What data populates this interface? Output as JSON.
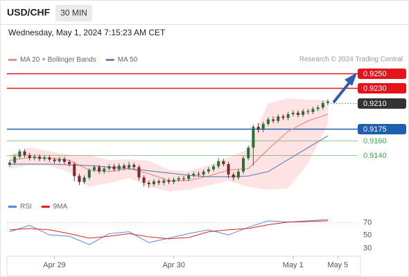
{
  "header": {
    "symbol": "USD/CHF",
    "interval": "30 MIN",
    "timestamp": "Wednesday, May 1, 2024 7:15:23 AM CET",
    "credit": "Research © 2024 Trading Central"
  },
  "chart_data": [
    {
      "type": "candlestick",
      "open": [
        0.9127,
        0.913,
        0.9138,
        0.9145,
        0.914,
        0.9136,
        0.9138,
        0.9135,
        0.9137,
        0.9134,
        0.9132,
        0.9135,
        0.9131,
        0.9128,
        0.9112,
        0.9104,
        0.911,
        0.912,
        0.9124,
        0.9118,
        0.9122,
        0.9125,
        0.9121,
        0.9126,
        0.9123,
        0.9127,
        0.9124,
        0.911,
        0.9103,
        0.9101,
        0.9105,
        0.9103,
        0.9106,
        0.9104,
        0.9107,
        0.9109,
        0.9108,
        0.9113,
        0.9115,
        0.9114,
        0.9118,
        0.9121,
        0.9125,
        0.9132,
        0.9128,
        0.9114,
        0.911,
        0.9118,
        0.9136,
        0.915,
        0.9178,
        0.9174,
        0.9182,
        0.9188,
        0.9186,
        0.9192,
        0.919,
        0.9195,
        0.9197,
        0.9194,
        0.9199,
        0.9198,
        0.9202,
        0.9204,
        0.921
      ],
      "high": [
        0.9133,
        0.9141,
        0.9148,
        0.9148,
        0.9143,
        0.9141,
        0.9141,
        0.914,
        0.914,
        0.9137,
        0.9138,
        0.9138,
        0.9134,
        0.9131,
        0.9115,
        0.9113,
        0.9123,
        0.9127,
        0.9127,
        0.9125,
        0.9128,
        0.9128,
        0.9129,
        0.9129,
        0.9131,
        0.913,
        0.9127,
        0.9113,
        0.9106,
        0.9108,
        0.9108,
        0.9109,
        0.9109,
        0.911,
        0.9112,
        0.9112,
        0.9116,
        0.9118,
        0.9118,
        0.9121,
        0.9124,
        0.9128,
        0.9136,
        0.9135,
        0.9131,
        0.9117,
        0.9121,
        0.9139,
        0.9153,
        0.9181,
        0.9183,
        0.9185,
        0.9191,
        0.9192,
        0.9195,
        0.9195,
        0.9198,
        0.92,
        0.92,
        0.9202,
        0.9202,
        0.9205,
        0.9207,
        0.9213,
        0.9215
      ],
      "low": [
        0.9124,
        0.9127,
        0.9135,
        0.9137,
        0.9133,
        0.9133,
        0.9132,
        0.9132,
        0.9131,
        0.9129,
        0.9129,
        0.9128,
        0.9125,
        0.9105,
        0.91,
        0.9101,
        0.9107,
        0.9117,
        0.9115,
        0.9115,
        0.9119,
        0.9118,
        0.9118,
        0.912,
        0.912,
        0.9121,
        0.9106,
        0.9098,
        0.9096,
        0.9098,
        0.91,
        0.91,
        0.9101,
        0.9101,
        0.9104,
        0.9105,
        0.9105,
        0.911,
        0.9111,
        0.9111,
        0.9115,
        0.9118,
        0.9122,
        0.9125,
        0.9109,
        0.9106,
        0.9107,
        0.9115,
        0.9133,
        0.9126,
        0.917,
        0.9171,
        0.9179,
        0.9183,
        0.9183,
        0.9187,
        0.9187,
        0.9192,
        0.9191,
        0.9191,
        0.9195,
        0.9195,
        0.9199,
        0.9201,
        0.9207
      ],
      "close": [
        0.913,
        0.9138,
        0.9145,
        0.914,
        0.9136,
        0.9138,
        0.9135,
        0.9137,
        0.9134,
        0.9132,
        0.9135,
        0.9131,
        0.9128,
        0.9112,
        0.9104,
        0.911,
        0.912,
        0.9124,
        0.9118,
        0.9122,
        0.9125,
        0.9121,
        0.9126,
        0.9123,
        0.9127,
        0.9124,
        0.911,
        0.9103,
        0.9101,
        0.9105,
        0.9103,
        0.9106,
        0.9104,
        0.9107,
        0.9109,
        0.9108,
        0.9113,
        0.9115,
        0.9114,
        0.9118,
        0.9121,
        0.9125,
        0.9132,
        0.9128,
        0.9114,
        0.911,
        0.9118,
        0.9136,
        0.915,
        0.9178,
        0.9174,
        0.9182,
        0.9188,
        0.9186,
        0.9192,
        0.919,
        0.9195,
        0.9197,
        0.9194,
        0.9199,
        0.9198,
        0.9202,
        0.9204,
        0.921,
        0.9212
      ],
      "up_color": "#2a6e3a",
      "down_color": "#7a2a2a",
      "series": [
        {
          "name": "MA 20 + Bollinger Bands",
          "color": "#f08c8c",
          "band_color": "#fde3e3",
          "values": [
            0.9133,
            0.9137,
            0.9136,
            0.9133,
            0.912,
            0.9118,
            0.9122,
            0.9115,
            0.9106,
            0.9106,
            0.9112,
            0.912,
            0.9122,
            0.9148,
            0.9172,
            0.9186,
            0.9195
          ],
          "upper": [
            0.914,
            0.915,
            0.9145,
            0.914,
            0.914,
            0.9133,
            0.9134,
            0.9132,
            0.912,
            0.9118,
            0.9126,
            0.9136,
            0.9148,
            0.9209,
            0.9216,
            0.9214,
            0.9214
          ],
          "lower": [
            0.9122,
            0.9127,
            0.9126,
            0.9118,
            0.9098,
            0.9103,
            0.911,
            0.9098,
            0.9092,
            0.9094,
            0.91,
            0.9106,
            0.9098,
            0.9094,
            0.9096,
            0.913,
            0.9183
          ]
        },
        {
          "name": "MA 50",
          "color": "#6f86b3",
          "values": [
            0.9128,
            0.9128,
            0.9128,
            0.9127,
            0.9126,
            0.9124,
            0.9122,
            0.9119,
            0.9116,
            0.9113,
            0.9111,
            0.9111,
            0.9112,
            0.9118,
            0.9134,
            0.915,
            0.9166
          ]
        }
      ],
      "levels": [
        {
          "value": 0.925,
          "label": "0.9250",
          "color": "#e5141b",
          "box": true,
          "dashed": false
        },
        {
          "value": 0.923,
          "label": "0.9230",
          "color": "#e5141b",
          "box": true,
          "dashed": false
        },
        {
          "value": 0.921,
          "label": "0.9210",
          "color": "#333333",
          "box": true,
          "dashed": true
        },
        {
          "value": 0.9175,
          "label": "0.9175",
          "color": "#1f5fae",
          "box": true,
          "dashed": false
        },
        {
          "value": 0.916,
          "label": "0.9160",
          "color": "#4aa84a",
          "box": false,
          "dashed": false
        },
        {
          "value": 0.914,
          "label": "0.9140",
          "color": "#4aa84a",
          "box": false,
          "dashed": false
        }
      ],
      "ylim": [
        0.9088,
        0.926
      ],
      "xlim": [
        0,
        70
      ],
      "xticks": [
        {
          "value": 9,
          "label": "Apr 29"
        },
        {
          "value": 33,
          "label": "Apr 30"
        },
        {
          "value": 57,
          "label": "May 1"
        },
        {
          "value": 66,
          "label": "May 5"
        }
      ]
    },
    {
      "type": "line",
      "series": [
        {
          "name": "RSI",
          "color": "#5b86d6",
          "values": [
            55,
            65,
            50,
            48,
            35,
            52,
            55,
            38,
            45,
            52,
            58,
            50,
            62,
            72,
            70,
            72,
            74
          ]
        },
        {
          "name": "9MA",
          "color": "#e02020",
          "values": [
            58,
            60,
            58,
            52,
            45,
            48,
            52,
            47,
            44,
            46,
            55,
            58,
            60,
            66,
            70,
            71,
            72
          ]
        }
      ],
      "ylim": [
        19,
        87
      ],
      "yticks": [
        30,
        50,
        70
      ]
    }
  ]
}
